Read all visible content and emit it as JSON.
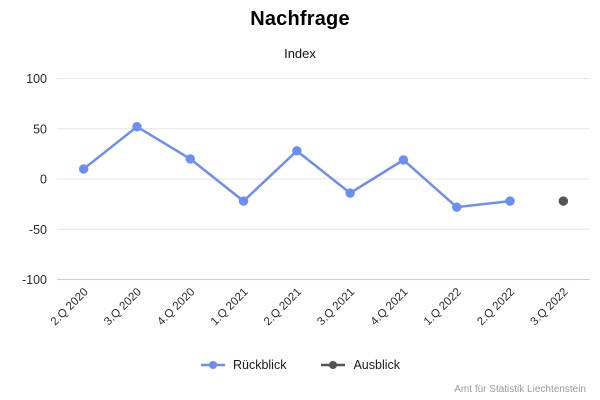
{
  "chart_data": {
    "type": "line",
    "title": "Nachfrage",
    "subtitle": "Index",
    "categories": [
      "2.Q 2020",
      "3.Q 2020",
      "4.Q 2020",
      "1.Q 2021",
      "2.Q 2021",
      "3.Q 2021",
      "4.Q 2021",
      "1.Q 2022",
      "2.Q 2022",
      "3.Q 2022"
    ],
    "series": [
      {
        "name": "Rückblick",
        "type": "line-with-points",
        "color": "#6c8df5",
        "values": [
          10,
          52,
          20,
          -22,
          28,
          -14,
          19,
          -28,
          -22,
          null
        ]
      },
      {
        "name": "Ausblick",
        "type": "point",
        "color": "#545454",
        "values": [
          null,
          null,
          null,
          null,
          null,
          null,
          null,
          null,
          null,
          -22
        ]
      }
    ],
    "ylim": [
      -100,
      100
    ],
    "yticks": [
      100,
      50,
      0,
      -50,
      -100
    ],
    "grid": true,
    "legend_position": "bottom",
    "x_label_rotation": -45
  },
  "attribution": "Amt für Statistik Liechtenstein",
  "colors": {
    "grid": "#e6e6e6",
    "axis_line": "#c3cfe6",
    "tick_label": "#2b2b2b",
    "x_label": "#2b2b2b"
  }
}
